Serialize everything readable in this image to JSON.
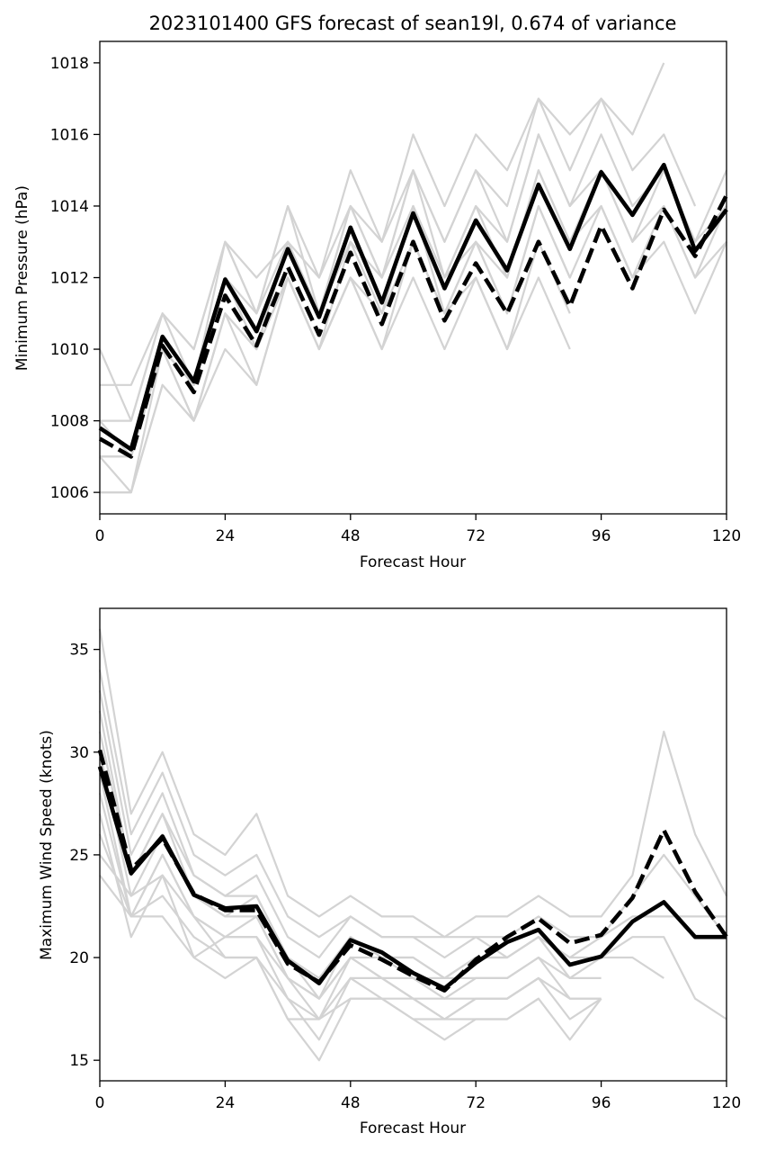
{
  "figure": {
    "title": "2023101400 GFS forecast of sean19l, 0.674 of variance"
  },
  "colors": {
    "member": "#d3d3d3",
    "mean": "#000000",
    "axes": "#000000",
    "background": "#ffffff"
  },
  "chart_data": [
    {
      "type": "line",
      "title": "2023101400 GFS forecast of sean19l, 0.674 of variance",
      "xlabel": "Forecast Hour",
      "ylabel": "Minimum Pressure (hPa)",
      "xlim": [
        0,
        120
      ],
      "ylim": [
        1005.4,
        1018.6
      ],
      "xticks": [
        0,
        24,
        48,
        72,
        96,
        120
      ],
      "yticks": [
        1006,
        1008,
        1010,
        1012,
        1014,
        1016,
        1018
      ],
      "grid": false,
      "legend": "none",
      "x": [
        0,
        6,
        12,
        18,
        24,
        30,
        36,
        42,
        48,
        54,
        60,
        66,
        72,
        78,
        84,
        90,
        96,
        102,
        108,
        114,
        120
      ],
      "members": [
        [
          1010,
          1008,
          1011,
          1010,
          1013,
          1012,
          1013,
          1012,
          1015,
          1013,
          1016,
          1014,
          1016,
          1015,
          1017,
          1016,
          1017,
          1016,
          1018
        ],
        [
          1009,
          1009,
          1011,
          1010,
          1013,
          1011,
          1014,
          1012,
          1014,
          1013,
          1015,
          1013,
          1015,
          1014,
          1017,
          1015,
          1017,
          1015,
          1016,
          1014
        ],
        [
          1008,
          1008,
          1011,
          1009,
          1013,
          1011,
          1014,
          1011,
          1014,
          1012,
          1015,
          1013,
          1015,
          1013,
          1016,
          1014,
          1016,
          1014,
          1015,
          1013,
          1015
        ],
        [
          1008,
          1007,
          1010,
          1009,
          1012,
          1011,
          1013,
          1011,
          1014,
          1012,
          1015,
          1012,
          1014,
          1013,
          1016,
          1014,
          1015,
          1013,
          1015,
          1013,
          1014
        ],
        [
          1007,
          1007,
          1010,
          1009,
          1012,
          1010,
          1013,
          1011,
          1013,
          1012,
          1014,
          1012,
          1014,
          1012,
          1015,
          1013,
          1015,
          1013,
          1014,
          1012,
          1014
        ],
        [
          1007,
          1007,
          1010,
          1009,
          1012,
          1010,
          1013,
          1011,
          1013,
          1011,
          1014,
          1012,
          1013,
          1012,
          1015,
          1013,
          1014,
          1012,
          1014,
          1012,
          1013
        ],
        [
          1007,
          1006,
          1010,
          1008,
          1011,
          1010,
          1012,
          1010,
          1013,
          1011,
          1014,
          1011,
          1013,
          1011,
          1014,
          1012,
          1014,
          1012,
          1013,
          1011,
          1013
        ],
        [
          1006,
          1006,
          1009,
          1008,
          1011,
          1010,
          1012,
          1010,
          1012,
          1011,
          1013,
          1011,
          1013,
          1011,
          1014,
          1012
        ],
        [
          1006,
          1006,
          1009,
          1008,
          1010,
          1009,
          1012,
          1010,
          1012,
          1010,
          1012,
          1010,
          1012,
          1010,
          1013,
          1011
        ],
        [
          1007,
          1007,
          1010,
          1008,
          1011,
          1009,
          1012,
          1010,
          1012,
          1010,
          1013,
          1011,
          1012,
          1010,
          1012,
          1010
        ]
      ],
      "series": [
        {
          "style": "solid",
          "values": [
            1007.8,
            1007.2,
            1010.35,
            1009.1,
            1011.95,
            1010.5,
            1012.8,
            1010.9,
            1013.4,
            1011.3,
            1013.8,
            1011.7,
            1013.6,
            1012.2,
            1014.6,
            1012.8,
            1014.95,
            1013.75,
            1015.15,
            1012.75,
            1013.9
          ]
        },
        {
          "style": "dashed",
          "values": [
            1007.5,
            1007.0,
            1010.1,
            1008.8,
            1011.5,
            1010.1,
            1012.3,
            1010.4,
            1012.7,
            1010.7,
            1013.0,
            1010.8,
            1012.4,
            1011.0,
            1013.0,
            1011.2,
            1013.45,
            1011.7,
            1013.9,
            1012.6,
            1014.3
          ]
        }
      ]
    },
    {
      "type": "line",
      "xlabel": "Forecast Hour",
      "ylabel": "Maximum Wind Speed (knots)",
      "xlim": [
        0,
        120
      ],
      "ylim": [
        14.0,
        37.0
      ],
      "xticks": [
        0,
        24,
        48,
        72,
        96,
        120
      ],
      "yticks": [
        15,
        20,
        25,
        30,
        35
      ],
      "grid": false,
      "legend": "none",
      "x": [
        0,
        6,
        12,
        18,
        24,
        30,
        36,
        42,
        48,
        54,
        60,
        66,
        72,
        78,
        84,
        90,
        96,
        102,
        108,
        114,
        120
      ],
      "members": [
        [
          36,
          27,
          30,
          26,
          25,
          27,
          23,
          22,
          23,
          22,
          22,
          21,
          22,
          22,
          23,
          22,
          22,
          24,
          31,
          26,
          23
        ],
        [
          34,
          26,
          29,
          25,
          24,
          25,
          22,
          21,
          22,
          21,
          21,
          21,
          21,
          21,
          22,
          21,
          21,
          23,
          25,
          23,
          21
        ],
        [
          33,
          25,
          28,
          24,
          23,
          24,
          21,
          20,
          22,
          21,
          21,
          20,
          21,
          20,
          21,
          20,
          21,
          22,
          22,
          22,
          22
        ],
        [
          32,
          24,
          27,
          24,
          23,
          23,
          20,
          19,
          21,
          20,
          20,
          19,
          20,
          20,
          21,
          20,
          20,
          21,
          21,
          18,
          17
        ],
        [
          31,
          24,
          27,
          23,
          22,
          23,
          20,
          18,
          21,
          20,
          20,
          19,
          20,
          20,
          21,
          19,
          20,
          20,
          19
        ],
        [
          30,
          23,
          26,
          23,
          22,
          22,
          19,
          18,
          20,
          20,
          19,
          19,
          19,
          19,
          20,
          19,
          19
        ],
        [
          29,
          22,
          25,
          22,
          21,
          22,
          19,
          17,
          20,
          19,
          19,
          18,
          19,
          19,
          20,
          18,
          18
        ],
        [
          28,
          22,
          25,
          22,
          21,
          21,
          18,
          17,
          19,
          19,
          18,
          18,
          18,
          18,
          19,
          18,
          18
        ],
        [
          27,
          21,
          24,
          22,
          20,
          20,
          18,
          16,
          19,
          18,
          18,
          17,
          18,
          18,
          19,
          17,
          18
        ],
        [
          26,
          22,
          23,
          21,
          20,
          20,
          17,
          15,
          18,
          18,
          17,
          16,
          17,
          17,
          18,
          16,
          18
        ],
        [
          25,
          23,
          24,
          20,
          19,
          20,
          17,
          17,
          18,
          18,
          17,
          17,
          17,
          17,
          18
        ],
        [
          24,
          22,
          22,
          20,
          21,
          21,
          19,
          18,
          20,
          19,
          18,
          17,
          18,
          18,
          19
        ]
      ],
      "series": [
        {
          "style": "solid",
          "values": [
            29.3,
            24.1,
            25.9,
            23.05,
            22.4,
            22.5,
            19.85,
            18.75,
            20.85,
            20.25,
            19.25,
            18.5,
            19.75,
            20.75,
            21.35,
            19.65,
            20.05,
            21.75,
            22.7,
            21.0,
            21.0
          ]
        },
        {
          "style": "dashed",
          "values": [
            30.1,
            24.3,
            25.8,
            23.1,
            22.3,
            22.3,
            19.7,
            18.8,
            20.6,
            19.9,
            19.1,
            18.4,
            19.9,
            21.0,
            21.9,
            20.7,
            21.1,
            22.9,
            26.2,
            23.2,
            21.0
          ]
        }
      ]
    }
  ]
}
